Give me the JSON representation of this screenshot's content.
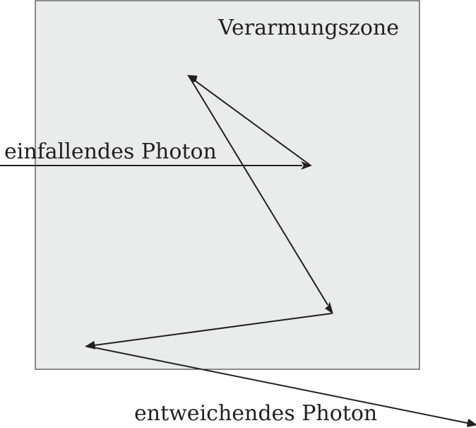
{
  "diagram": {
    "zone_label": "Verarmungszone",
    "incoming_label": "einfallendes Photon",
    "outgoing_label": "entweichendes Photon"
  },
  "colors": {
    "zone_fill": "#eaebeb",
    "line": "#231f20",
    "background": "#ffffff"
  }
}
